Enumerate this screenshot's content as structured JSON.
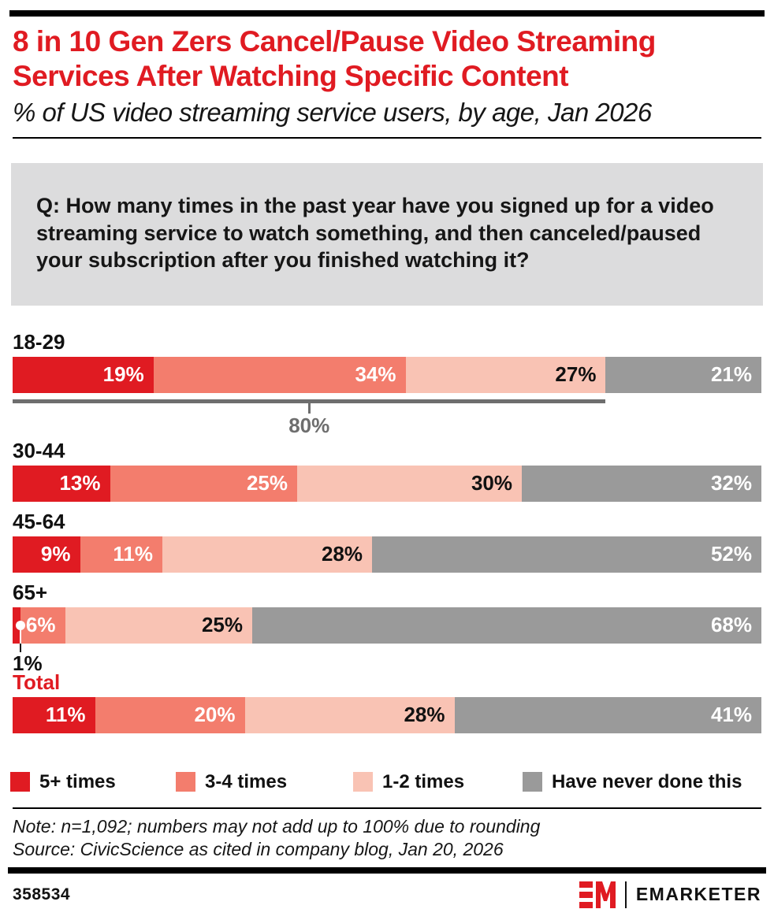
{
  "header": {
    "title": "8 in 10 Gen Zers Cancel/Pause Video Streaming Services After Watching Specific Content",
    "subtitle": "% of US video streaming service users, by age, Jan 2026"
  },
  "question": {
    "text": "Q: How many times in the past year have you signed up for a video streaming service to watch something, and then canceled/paused your subscription after you finished watching it?"
  },
  "chart_data": {
    "type": "bar",
    "subtype": "stacked-horizontal",
    "unit": "%",
    "title": "8 in 10 Gen Zers Cancel/Pause Video Streaming Services After Watching Specific Content",
    "subtitle": "% of US video streaming service users, by age, Jan 2026",
    "legend_position": "bottom",
    "categories": [
      "18-29",
      "30-44",
      "45-64",
      "65+",
      "Total"
    ],
    "series": [
      {
        "name": "5+ times",
        "color": "#e01b22",
        "label_color": "#ffffff",
        "values": [
          19,
          13,
          9,
          1,
          11
        ]
      },
      {
        "name": "3-4 times",
        "color": "#f37d6d",
        "label_color": "#ffffff",
        "values": [
          34,
          25,
          11,
          6,
          20
        ]
      },
      {
        "name": "1-2 times",
        "color": "#f9c3b4",
        "label_color": "#111111",
        "values": [
          27,
          30,
          28,
          25,
          28
        ]
      },
      {
        "name": "Have never done this",
        "color": "#9a9a9a",
        "label_color": "#ffffff",
        "values": [
          21,
          32,
          52,
          68,
          41
        ]
      }
    ],
    "annotations": [
      {
        "type": "bracket",
        "category": "18-29",
        "span_first_series": 3,
        "label": "80%",
        "color": "#6e6e6e"
      },
      {
        "type": "callout",
        "category": "65+",
        "series_index": 0,
        "label": "1%"
      }
    ],
    "min_inline_label_value": 3
  },
  "notes": {
    "note": "Note: n=1,092; numbers may not add up to 100% due to rounding",
    "source": "Source: CivicScience as cited in company blog, Jan 20, 2026"
  },
  "footer": {
    "chart_id": "358534",
    "logo_mark": "EM",
    "brand_name": "EMARKETER",
    "brand_color": "#e01b22"
  }
}
